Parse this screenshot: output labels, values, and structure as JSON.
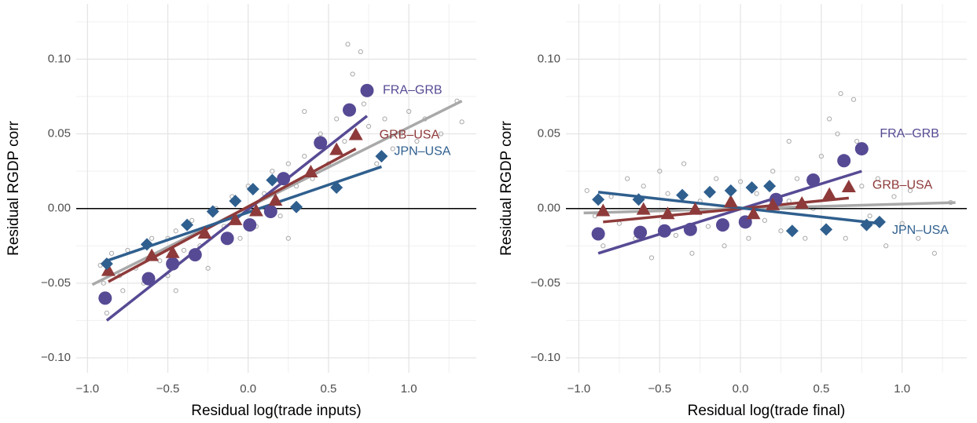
{
  "chart_data": [
    {
      "type": "scatter",
      "x_label": "Residual log(trade inputs)",
      "y_label": "Residual RGDP corr",
      "xlim": [
        -1.07,
        1.42
      ],
      "ylim": [
        -0.11,
        0.137
      ],
      "xticks": [
        {
          "value": -1,
          "label": "−1.0"
        },
        {
          "value": -0.5,
          "label": "−0.5"
        },
        {
          "value": 0,
          "label": "0.0"
        },
        0.5,
        {
          "value": 1,
          "label": "1.0"
        }
      ],
      "yticks": [
        {
          "value": -0.1,
          "label": "−0.10"
        },
        {
          "value": -0.05,
          "label": "−0.05"
        },
        {
          "value": 0,
          "label": "0.00"
        },
        0.05,
        {
          "value": 0.1,
          "label": "0.10"
        }
      ],
      "xminor": [
        -0.75,
        -0.25,
        0.25,
        0.75,
        1.25
      ],
      "yminor": [
        -0.075,
        -0.025,
        0.025,
        0.075,
        0.125
      ],
      "grid": true,
      "hline": 0,
      "series": [
        {
          "color": "#a9a9a9",
          "shape": "open-circle",
          "x": [
            -0.92,
            -0.9,
            -0.88,
            -0.85,
            -0.8,
            -0.78,
            -0.75,
            -0.7,
            -0.65,
            -0.6,
            -0.55,
            -0.5,
            -0.5,
            -0.45,
            -0.4,
            -0.35,
            -0.3,
            -0.25,
            -0.2,
            -0.15,
            -0.1,
            -0.05,
            0.0,
            0.02,
            0.05,
            0.1,
            0.15,
            0.2,
            0.25,
            0.3,
            0.35,
            0.4,
            0.45,
            0.5,
            0.55,
            0.6,
            0.62,
            0.65,
            0.7,
            0.72,
            0.75,
            0.8,
            0.85,
            0.9,
            0.95,
            1.0,
            1.05,
            1.1,
            1.2,
            1.3,
            1.33,
            -0.45,
            0.35,
            0.25
          ],
          "values": [
            -0.038,
            -0.05,
            -0.07,
            -0.03,
            -0.045,
            -0.055,
            -0.028,
            -0.04,
            -0.05,
            -0.02,
            -0.035,
            -0.02,
            -0.045,
            -0.015,
            -0.028,
            -0.008,
            -0.025,
            -0.04,
            0.0,
            -0.012,
            0.008,
            -0.02,
            0.015,
            0.0,
            -0.012,
            0.01,
            0.025,
            -0.005,
            0.03,
            0.015,
            0.035,
            0.02,
            0.05,
            0.03,
            0.06,
            0.045,
            0.11,
            0.09,
            0.105,
            0.07,
            0.055,
            0.03,
            0.06,
            0.04,
            0.05,
            0.065,
            0.045,
            0.06,
            0.05,
            0.072,
            0.058,
            -0.055,
            0.065,
            -0.02
          ],
          "fit": {
            "x": [
              -0.97,
              1.33
            ],
            "values": [
              -0.051,
              0.072
            ]
          }
        },
        {
          "name": "FRA–GRB",
          "color": "#574a94",
          "shape": "circle",
          "x": [
            -0.89,
            -0.62,
            -0.47,
            -0.33,
            -0.13,
            0.01,
            0.14,
            0.22,
            0.45,
            0.63,
            0.74
          ],
          "values": [
            -0.06,
            -0.047,
            -0.037,
            -0.031,
            -0.02,
            -0.011,
            -0.002,
            0.02,
            0.044,
            0.066,
            0.079
          ],
          "fit": {
            "x": [
              -0.88,
              0.74
            ],
            "values": [
              -0.075,
              0.062
            ]
          }
        },
        {
          "name": "GRB–USA",
          "color": "#8e3a3a",
          "shape": "triangle",
          "x": [
            -0.87,
            -0.6,
            -0.47,
            -0.27,
            -0.08,
            0.05,
            0.17,
            0.39,
            0.55,
            0.67
          ],
          "values": [
            -0.042,
            -0.032,
            -0.03,
            -0.017,
            -0.008,
            -0.002,
            0.005,
            0.024,
            0.039,
            0.049
          ],
          "fit": {
            "x": [
              -0.87,
              0.67
            ],
            "values": [
              -0.049,
              0.04
            ]
          }
        },
        {
          "name": "JPN–USA",
          "color": "#2f5f8e",
          "shape": "diamond",
          "x": [
            -0.88,
            -0.63,
            -0.38,
            -0.22,
            -0.08,
            0.03,
            0.15,
            0.3,
            0.55,
            0.83
          ],
          "values": [
            -0.037,
            -0.024,
            -0.011,
            -0.002,
            0.005,
            0.013,
            0.019,
            0.001,
            0.014,
            0.035
          ],
          "fit": {
            "x": [
              -0.88,
              0.83
            ],
            "values": [
              -0.035,
              0.028
            ]
          }
        }
      ]
    },
    {
      "type": "scatter",
      "x_label": "Residual log(trade final)",
      "y_label": "Residual RGDP corr",
      "xlim": [
        -1.08,
        1.4
      ],
      "ylim": [
        -0.11,
        0.137
      ],
      "xticks": [
        {
          "value": -1,
          "label": "−1.0"
        },
        {
          "value": -0.5,
          "label": "−0.5"
        },
        {
          "value": 0,
          "label": "0.0"
        },
        0.5,
        {
          "value": 1,
          "label": "1.0"
        }
      ],
      "yticks": [
        {
          "value": -0.1,
          "label": "−0.10"
        },
        {
          "value": -0.05,
          "label": "−0.05"
        },
        {
          "value": 0,
          "label": "0.00"
        },
        0.05,
        {
          "value": 0.1,
          "label": "0.10"
        }
      ],
      "xminor": [
        -0.75,
        -0.25,
        0.25,
        0.75,
        1.25
      ],
      "yminor": [
        -0.075,
        -0.025,
        0.025,
        0.075,
        0.125
      ],
      "grid": true,
      "hline": 0,
      "series": [
        {
          "color": "#a9a9a9",
          "shape": "open-circle",
          "x": [
            -0.95,
            -0.9,
            -0.85,
            -0.8,
            -0.75,
            -0.7,
            -0.65,
            -0.6,
            -0.55,
            -0.5,
            -0.45,
            -0.4,
            -0.35,
            -0.3,
            -0.25,
            -0.2,
            -0.15,
            -0.1,
            -0.05,
            0.0,
            0.05,
            0.1,
            0.15,
            0.2,
            0.25,
            0.3,
            0.35,
            0.4,
            0.45,
            0.5,
            0.55,
            0.6,
            0.62,
            0.65,
            0.7,
            0.72,
            0.75,
            0.8,
            0.85,
            0.9,
            0.95,
            1.0,
            1.05,
            1.1,
            1.2,
            1.3,
            0.3,
            -0.6
          ],
          "values": [
            0.012,
            -0.005,
            -0.025,
            0.008,
            -0.01,
            0.02,
            -0.02,
            0.0,
            -0.033,
            0.025,
            0.01,
            -0.018,
            0.03,
            -0.03,
            0.005,
            -0.012,
            0.02,
            -0.025,
            0.003,
            0.018,
            -0.02,
            0.01,
            -0.008,
            0.025,
            -0.015,
            0.005,
            0.02,
            -0.02,
            0.0,
            0.035,
            0.06,
            0.05,
            0.077,
            -0.02,
            0.073,
            0.045,
            0.015,
            -0.005,
            0.02,
            -0.025,
            0.008,
            -0.01,
            0.012,
            -0.02,
            -0.03,
            0.004,
            0.045,
            0.015
          ],
          "fit": {
            "x": [
              -0.97,
              1.33
            ],
            "values": [
              -0.003,
              0.004
            ]
          }
        },
        {
          "name": "FRA–GRB",
          "color": "#574a94",
          "shape": "circle",
          "x": [
            -0.88,
            -0.62,
            -0.47,
            -0.31,
            -0.11,
            0.03,
            0.22,
            0.45,
            0.64,
            0.75
          ],
          "values": [
            -0.017,
            -0.016,
            -0.015,
            -0.014,
            -0.011,
            -0.009,
            0.006,
            0.019,
            0.032,
            0.04
          ],
          "fit": {
            "x": [
              -0.88,
              0.75
            ],
            "values": [
              -0.03,
              0.025
            ]
          }
        },
        {
          "name": "GRB–USA",
          "color": "#8e3a3a",
          "shape": "triangle",
          "x": [
            -0.85,
            -0.6,
            -0.45,
            -0.28,
            -0.06,
            0.08,
            0.2,
            0.38,
            0.55,
            0.67
          ],
          "values": [
            -0.002,
            -0.001,
            -0.004,
            -0.001,
            0.004,
            -0.004,
            0.002,
            0.003,
            0.009,
            0.014
          ],
          "fit": {
            "x": [
              -0.85,
              0.67
            ],
            "values": [
              -0.009,
              0.007
            ]
          }
        },
        {
          "name": "JPN–USA",
          "color": "#2f5f8e",
          "shape": "diamond",
          "x": [
            -0.88,
            -0.63,
            -0.36,
            -0.19,
            -0.06,
            0.07,
            0.18,
            0.32,
            0.53,
            0.78,
            0.86
          ],
          "values": [
            0.006,
            0.006,
            0.009,
            0.011,
            0.012,
            0.014,
            0.015,
            -0.015,
            -0.014,
            -0.011,
            -0.009
          ],
          "fit": {
            "x": [
              -0.88,
              0.86
            ],
            "values": [
              0.011,
              -0.01
            ]
          }
        }
      ]
    }
  ]
}
